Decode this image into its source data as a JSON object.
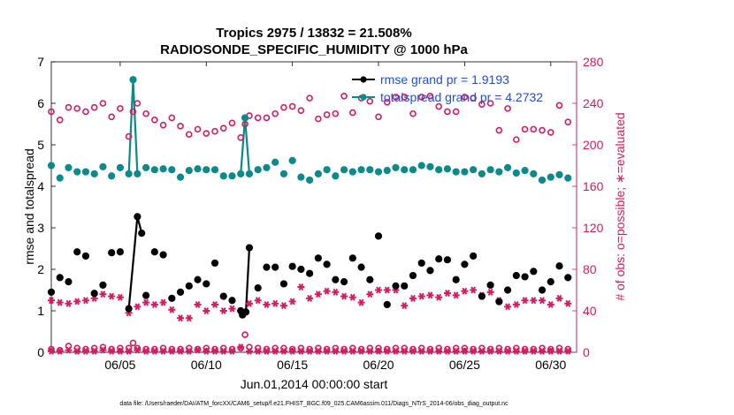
{
  "chart_data": {
    "type": "scatter",
    "title": "Tropics 2975 / 13832 = 21.508%",
    "subtitle": "RADIOSONDE_SPECIFIC_HUMIDITY @ 1000 hPa",
    "xlabel": "Jun.01,2014 00:00:00 start",
    "ylabel": "rmse and totalspread",
    "ylabel_right": "# of obs: o=possible; ∗=evaluated",
    "footnote": "data file: /Users/raeder/DAI/ATM_forcXX/CAM6_setup/f.e21.FHIST_BGC.f09_025.CAM6assim.011/Diags_NTrS_2014-06/obs_diag_output.nc",
    "xlim": [
      1.0,
      31.5
    ],
    "ylim": [
      0,
      7
    ],
    "ylim_right": [
      0,
      280
    ],
    "x_ticks": [
      5,
      10,
      15,
      20,
      25,
      30
    ],
    "x_tick_labels": [
      "06/05",
      "06/10",
      "06/15",
      "06/20",
      "06/25",
      "06/30"
    ],
    "y_ticks": [
      "0",
      "1",
      "2",
      "3",
      "4",
      "5",
      "6",
      "7"
    ],
    "y_right_ticks": [
      "0",
      "40",
      "80",
      "120",
      "160",
      "200",
      "240",
      "280"
    ],
    "legend": [
      "rmse grand pr = 1.9193",
      "totalspread grand pr = 4.2732"
    ],
    "legend_position": "top-right",
    "colors": {
      "rmse": "#000000",
      "spread": "#0a8a8a",
      "obs": "#d81b60",
      "legend_text": "#1f4fd8"
    },
    "series": [
      {
        "name": "rmse",
        "x": [
          1.0,
          1.5,
          2.0,
          2.5,
          3.0,
          3.5,
          4.0,
          4.5,
          5.0,
          5.5,
          6.0,
          6.25,
          6.5,
          7.0,
          7.5,
          8.0,
          8.5,
          9.0,
          9.5,
          10.0,
          10.5,
          11.0,
          11.5,
          12.0,
          12.1,
          12.3,
          12.5,
          13.0,
          13.5,
          14.0,
          14.5,
          15.0,
          15.5,
          16.0,
          16.5,
          17.0,
          17.5,
          18.0,
          18.5,
          19.0,
          19.5,
          20.0,
          20.5,
          21.0,
          21.5,
          22.0,
          22.5,
          23.0,
          23.5,
          24.0,
          24.5,
          25.0,
          25.5,
          26.0,
          26.5,
          27.0,
          27.5,
          28.0,
          28.5,
          29.0,
          29.5,
          30.0,
          30.5,
          31.0
        ],
        "values": [
          1.45,
          1.8,
          1.7,
          2.42,
          2.32,
          1.42,
          1.62,
          2.4,
          2.42,
          1.05,
          3.27,
          2.87,
          1.37,
          2.42,
          2.35,
          1.3,
          1.45,
          1.6,
          1.75,
          1.65,
          2.15,
          1.35,
          1.25,
          1.0,
          0.9,
          0.97,
          2.52,
          1.55,
          2.05,
          2.05,
          1.65,
          2.07,
          2.0,
          1.9,
          2.27,
          2.12,
          1.75,
          1.7,
          2.27,
          2.05,
          1.75,
          2.8,
          1.15,
          1.6,
          1.6,
          1.85,
          2.15,
          1.97,
          2.25,
          2.23,
          1.75,
          2.12,
          2.32,
          1.35,
          1.62,
          1.22,
          1.5,
          1.85,
          1.82,
          1.95,
          1.5,
          1.7,
          2.08,
          1.8
        ],
        "line_segments": [
          [
            5.5,
            6.0,
            6.25
          ],
          [
            12.0,
            12.1,
            12.3,
            12.5
          ]
        ]
      },
      {
        "name": "totalspread",
        "x": [
          1.0,
          1.5,
          2.0,
          2.5,
          3.0,
          3.5,
          4.0,
          4.5,
          5.0,
          5.5,
          5.75,
          6.0,
          6.5,
          7.0,
          7.5,
          8.0,
          8.5,
          9.0,
          9.5,
          10.0,
          10.5,
          11.0,
          11.5,
          12.0,
          12.25,
          12.5,
          13.0,
          13.5,
          14.0,
          14.5,
          15.0,
          15.5,
          16.0,
          16.5,
          17.0,
          17.5,
          18.0,
          18.5,
          19.0,
          19.5,
          20.0,
          20.5,
          21.0,
          21.5,
          22.0,
          22.5,
          23.0,
          23.5,
          24.0,
          24.5,
          25.0,
          25.5,
          26.0,
          26.5,
          27.0,
          27.5,
          28.0,
          28.5,
          29.0,
          29.5,
          30.0,
          30.5,
          31.0
        ],
        "values": [
          4.5,
          4.2,
          4.45,
          4.35,
          4.35,
          4.3,
          4.47,
          4.25,
          4.45,
          4.3,
          6.57,
          4.3,
          4.45,
          4.4,
          4.42,
          4.4,
          4.22,
          4.38,
          4.42,
          4.4,
          4.4,
          4.25,
          4.25,
          4.3,
          5.65,
          4.3,
          4.4,
          4.45,
          4.58,
          4.3,
          4.62,
          4.22,
          4.15,
          4.3,
          4.4,
          4.25,
          4.4,
          4.35,
          4.4,
          4.4,
          4.35,
          4.38,
          4.45,
          4.4,
          4.4,
          4.5,
          4.47,
          4.4,
          4.42,
          4.35,
          4.35,
          4.4,
          4.3,
          4.4,
          4.35,
          4.45,
          4.32,
          4.38,
          4.3,
          4.15,
          4.22,
          4.28,
          4.2
        ],
        "line_segments": [
          [
            5.5,
            5.75,
            6.0
          ],
          [
            12.0,
            12.25,
            12.5
          ]
        ]
      },
      {
        "name": "obs possible",
        "axis": "right",
        "x": [
          1.0,
          1.5,
          2.0,
          2.5,
          3.0,
          3.5,
          4.0,
          4.5,
          5.0,
          5.5,
          5.75,
          6.0,
          6.5,
          7.0,
          7.5,
          8.0,
          8.5,
          9.0,
          9.5,
          10.0,
          10.5,
          11.0,
          11.5,
          12.0,
          12.25,
          12.5,
          13.0,
          13.5,
          14.0,
          14.5,
          15.0,
          15.5,
          16.0,
          16.5,
          17.0,
          17.5,
          18.0,
          18.5,
          19.0,
          19.5,
          20.0,
          20.5,
          21.0,
          21.5,
          22.0,
          22.5,
          23.0,
          23.5,
          24.0,
          24.5,
          25.0,
          25.5,
          26.0,
          26.5,
          27.0,
          27.5,
          28.0,
          28.5,
          29.0,
          29.5,
          30.0,
          30.5,
          31.0
        ],
        "values": [
          232,
          224,
          236,
          235,
          232,
          236,
          240,
          227,
          235,
          208,
          232,
          240,
          230,
          224,
          219,
          226,
          218,
          210,
          215,
          211,
          213,
          216,
          221,
          207,
          220,
          228,
          226,
          226,
          230,
          236,
          237,
          233,
          245,
          225,
          229,
          230,
          247,
          231,
          245,
          242,
          227,
          241,
          246,
          246,
          230,
          246,
          247,
          237,
          232,
          232,
          246,
          245,
          239,
          240,
          214,
          235,
          205,
          215,
          215,
          214,
          212,
          238,
          222
        ],
        "small_values": [
          3,
          2,
          6,
          4,
          3,
          4,
          5,
          3,
          4,
          4,
          9,
          4,
          3,
          3,
          4,
          3,
          3,
          4,
          3,
          4,
          3,
          4,
          3,
          4,
          17,
          5,
          4,
          3,
          4,
          4,
          3,
          4,
          3,
          4,
          3,
          4,
          3,
          4,
          3,
          4,
          4,
          3,
          4,
          4,
          3,
          4,
          3,
          4,
          3,
          4,
          4,
          3,
          4,
          3,
          4,
          3,
          4,
          3,
          3,
          4,
          3,
          4,
          3
        ]
      },
      {
        "name": "obs evaluated",
        "axis": "right",
        "x": [
          1.0,
          1.5,
          2.0,
          2.5,
          3.0,
          3.5,
          4.0,
          4.5,
          5.0,
          5.5,
          6.0,
          6.5,
          7.0,
          7.5,
          8.0,
          8.5,
          9.0,
          9.5,
          10.0,
          10.5,
          11.0,
          11.5,
          12.0,
          12.5,
          13.0,
          13.5,
          14.0,
          14.5,
          15.0,
          15.5,
          16.0,
          16.5,
          17.0,
          17.5,
          18.0,
          18.5,
          19.0,
          19.5,
          20.0,
          20.5,
          21.0,
          21.5,
          22.0,
          22.5,
          23.0,
          23.5,
          24.0,
          24.5,
          25.0,
          25.5,
          26.0,
          26.5,
          27.0,
          27.5,
          28.0,
          28.5,
          29.0,
          29.5,
          30.0,
          30.5,
          31.0
        ],
        "values": [
          50,
          48,
          47,
          49,
          50,
          52,
          56,
          54,
          53,
          38,
          44,
          48,
          46,
          48,
          41,
          33,
          33,
          46,
          40,
          46,
          40,
          42,
          40,
          47,
          50,
          46,
          47,
          45,
          49,
          63,
          52,
          56,
          59,
          58,
          54,
          53,
          48,
          56,
          60,
          60,
          60,
          45,
          52,
          54,
          55,
          53,
          57,
          55,
          59,
          60,
          55,
          58,
          50,
          44,
          46,
          50,
          50,
          50,
          46,
          52,
          47
        ],
        "small_values": [
          1,
          1,
          2,
          1,
          1,
          1,
          2,
          1,
          1,
          1,
          2,
          1,
          1,
          1,
          1,
          1,
          1,
          2,
          1,
          1,
          1,
          1,
          5,
          1,
          1,
          1,
          1,
          1,
          1,
          1,
          1,
          1,
          1,
          1,
          1,
          1,
          1,
          1,
          1,
          1,
          1,
          1,
          1,
          1,
          1,
          1,
          1,
          1,
          1,
          1,
          1,
          1,
          1,
          1,
          1,
          1,
          1,
          1,
          1,
          1,
          1
        ]
      }
    ]
  }
}
